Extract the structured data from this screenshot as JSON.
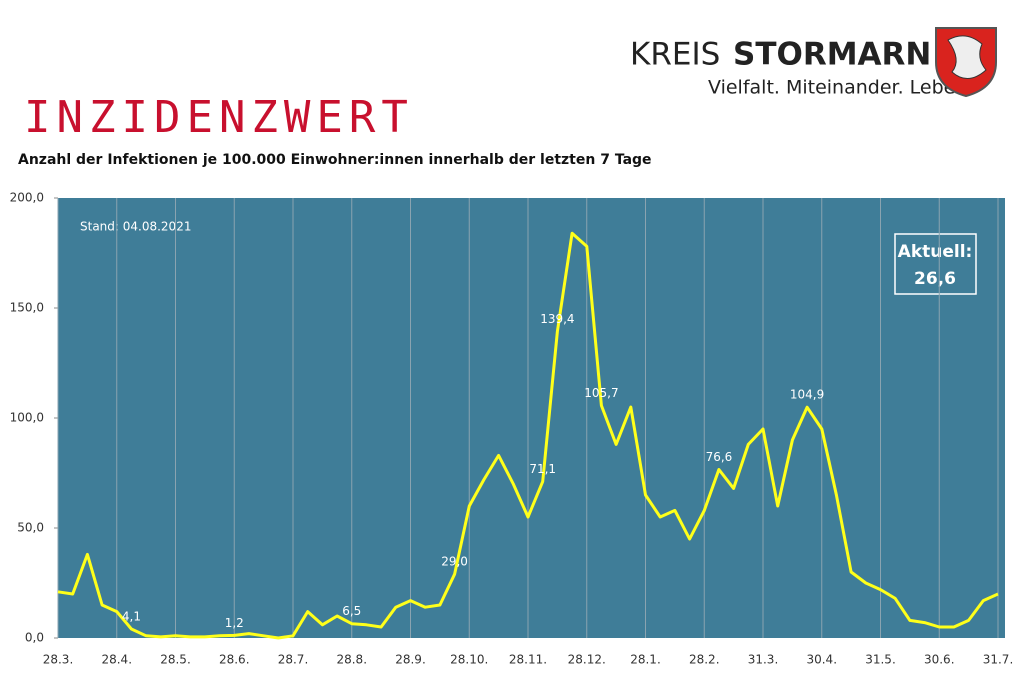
{
  "header": {
    "logo_name_1": "KREIS",
    "logo_name_2": "STORMARN",
    "logo_slogan": "Vielfalt. Miteinander. Leben."
  },
  "chart_data": {
    "type": "line",
    "title": "INZIDENZWERT",
    "subtitle": "Anzahl der Infektionen je 100.000 Einwohner:innen innerhalb der letzten 7 Tage",
    "annotations": [
      "Stand: 04.08.2021",
      "Aktuell:",
      "26,6"
    ],
    "categories": [
      "28.3.",
      null,
      null,
      null,
      "28.4.",
      null,
      null,
      null,
      "28.5.",
      null,
      null,
      null,
      "28.6.",
      null,
      null,
      null,
      "28.7.",
      null,
      null,
      null,
      "28.8.",
      null,
      null,
      null,
      "28.9.",
      null,
      null,
      null,
      "28.10.",
      null,
      null,
      null,
      "28.11.",
      null,
      null,
      null,
      "28.12.",
      null,
      null,
      null,
      "28.1.",
      null,
      null,
      null,
      "28.2.",
      null,
      null,
      null,
      "31.3.",
      null,
      null,
      null,
      "30.4.",
      null,
      null,
      null,
      "31.5.",
      null,
      null,
      null,
      "30.6.",
      null,
      null,
      null,
      "31.7."
    ],
    "values": [
      21,
      20,
      38,
      15,
      12,
      4.1,
      1,
      0.5,
      1,
      0.5,
      0.5,
      1,
      1.2,
      2,
      1,
      0,
      1,
      12,
      6,
      10,
      6.5,
      6,
      5,
      14,
      17,
      14,
      15,
      29.0,
      60,
      72,
      83,
      70,
      55,
      71.1,
      139.4,
      184,
      178,
      105.7,
      88,
      105,
      65,
      55,
      58,
      45,
      58,
      76.6,
      68,
      88,
      95,
      60,
      90,
      104.9,
      95,
      65,
      30,
      25,
      22,
      18,
      8,
      7,
      5,
      5,
      8,
      17,
      20
    ],
    "value_labels": [
      null,
      null,
      null,
      null,
      null,
      "4,1",
      null,
      null,
      null,
      null,
      null,
      null,
      "1,2",
      null,
      null,
      null,
      null,
      null,
      null,
      null,
      "6,5",
      null,
      null,
      null,
      null,
      null,
      null,
      "29,0",
      null,
      null,
      null,
      null,
      null,
      "71,1",
      "139,4",
      null,
      null,
      "105,7",
      null,
      null,
      null,
      null,
      null,
      null,
      null,
      "76,6",
      null,
      null,
      null,
      null,
      null,
      "104,9",
      null,
      null,
      null,
      null,
      null,
      null,
      null,
      null,
      null,
      null,
      null,
      null,
      null
    ],
    "color": "#ffff1a",
    "background": "#3f7d98",
    "ylim": [
      0,
      200
    ],
    "yticks": [
      {
        "value": 0,
        "label": "0,0"
      },
      {
        "value": 50,
        "label": "50,0"
      },
      {
        "value": 100,
        "label": "100,0"
      },
      {
        "value": 150,
        "label": "150,0"
      },
      {
        "value": 200,
        "label": "200,0"
      }
    ],
    "grid": "x"
  }
}
